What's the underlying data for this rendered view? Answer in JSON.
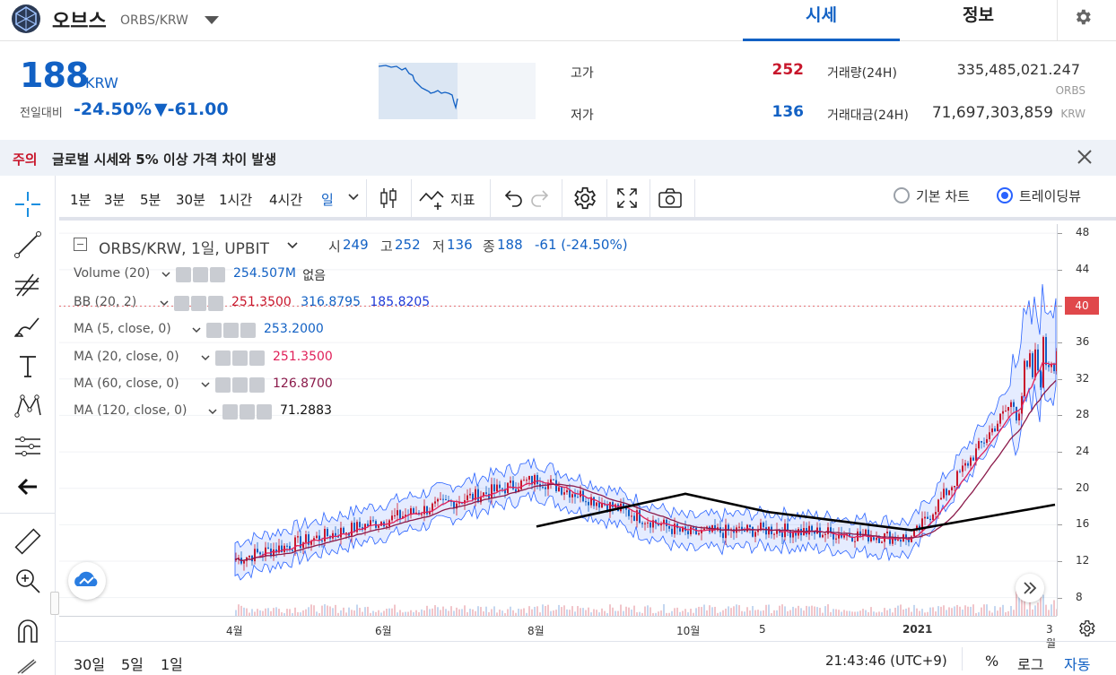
{
  "header": {
    "coin_name": "오브스",
    "pair": "ORBS/KRW",
    "tabs": [
      "시세",
      "정보"
    ]
  },
  "ticker": {
    "price": "188",
    "unit": "KRW",
    "prev_label": "전일대비",
    "change_pct": "-24.50%",
    "change_amt": "▼-61.00",
    "high_label": "고가",
    "high": "252",
    "low_label": "저가",
    "low": "136",
    "volume_label": "거래량(24H)",
    "volume": "335,485,021.247",
    "volume_unit": "ORBS",
    "amount_label": "거래대금(24H)",
    "amount": "71,697,303,859",
    "amount_unit": "KRW"
  },
  "notice": {
    "tag": "주의",
    "message": "글로벌 시세와 5% 이상 가격 차이 발생"
  },
  "toolbar": {
    "timeframes": [
      "1분",
      "3분",
      "5분",
      "30분",
      "1시간",
      "4시간",
      "일"
    ],
    "indicators_label": "지표",
    "basic_chart_label": "기본 차트",
    "tradingview_label": "트레이딩뷰"
  },
  "legend": {
    "title": "ORBS/KRW, 1일, UPBIT",
    "open_label": "시",
    "open": "249",
    "high_label": "고",
    "high": "252",
    "low_label": "저",
    "low": "136",
    "close_label": "종",
    "close": "188",
    "change": "-61 (-24.50%)",
    "indicators": [
      {
        "name": "Volume (20)",
        "values": [
          "254.507M",
          "없음"
        ]
      },
      {
        "name": "BB (20, 2)",
        "values": [
          "251.3500",
          "316.8795",
          "185.8205"
        ]
      },
      {
        "name": "MA (5, close, 0)",
        "values": [
          "253.2000"
        ]
      },
      {
        "name": "MA (20, close, 0)",
        "values": [
          "251.3500"
        ]
      },
      {
        "name": "MA (60, close, 0)",
        "values": [
          "126.8700"
        ]
      },
      {
        "name": "MA (120, close, 0)",
        "values": [
          "71.2883"
        ]
      }
    ]
  },
  "colors": {
    "accent": "#1261c4",
    "down": "#1261c4",
    "up": "#c8172c",
    "bb": "#2962ff",
    "ma5": "#1261c4",
    "ma20": "#e0215a",
    "ma60": "#8b1a4a",
    "ma120": "#000000"
  },
  "chart_data": {
    "type": "line",
    "title": "ORBS/KRW, 1일, UPBIT",
    "x_ticks": [
      "4월",
      "6월",
      "8월",
      "10월",
      "5",
      "2021",
      "3월"
    ],
    "y_ticks": [
      8,
      12,
      16,
      20,
      24,
      28,
      32,
      36,
      40,
      44,
      48
    ],
    "y_last": "40",
    "ylim": [
      6,
      49
    ],
    "series": [
      {
        "name": "MA (120, close, 0)",
        "x": [
          "8월",
          "10월",
          "5",
          "2021",
          "3월"
        ],
        "values": [
          15.8,
          19.4,
          17.4,
          15.4,
          18.2
        ]
      }
    ],
    "price_approx": {
      "x": [
        "4월",
        "6월",
        "8월",
        "10월",
        "5",
        "2021",
        "3월"
      ],
      "values": [
        12.2,
        16.5,
        21,
        15,
        15.5,
        14.5,
        36
      ]
    }
  },
  "bottom": {
    "ranges": [
      "30일",
      "5일",
      "1일"
    ],
    "clock": "21:43:46 (UTC+9)",
    "pct": "%",
    "log": "로그",
    "auto": "자동"
  }
}
